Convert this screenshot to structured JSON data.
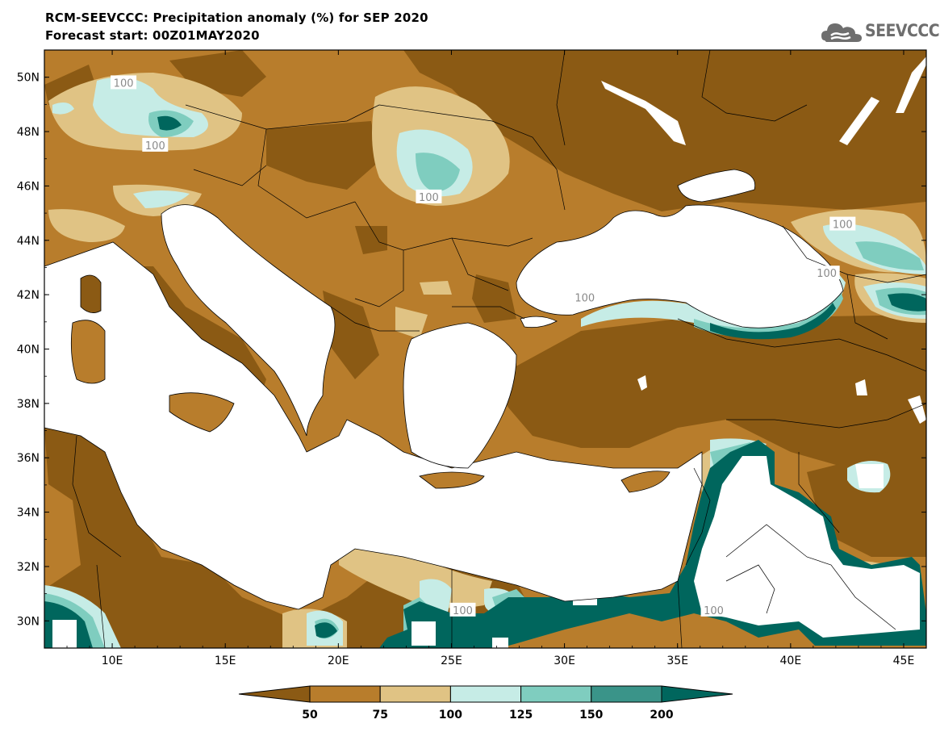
{
  "header": {
    "title_line1": "RCM-SEEVCCC: Precipitation anomaly (%) for SEP 2020",
    "title_line2": "Forecast start: 00Z01MAY2020"
  },
  "logo": {
    "text": "SEEVCCC",
    "icon": "cloud-icon",
    "color": "#6e6e6e"
  },
  "map": {
    "lon_range": [
      7,
      46
    ],
    "lat_range": [
      29,
      51
    ],
    "lat_ticks": [
      {
        "value": 50,
        "label": "50N"
      },
      {
        "value": 48,
        "label": "48N"
      },
      {
        "value": 46,
        "label": "46N"
      },
      {
        "value": 44,
        "label": "44N"
      },
      {
        "value": 42,
        "label": "42N"
      },
      {
        "value": 40,
        "label": "40N"
      },
      {
        "value": 38,
        "label": "38N"
      },
      {
        "value": 36,
        "label": "36N"
      },
      {
        "value": 34,
        "label": "34N"
      },
      {
        "value": 32,
        "label": "32N"
      },
      {
        "value": 30,
        "label": "30N"
      }
    ],
    "lon_ticks": [
      {
        "value": 10,
        "label": "10E"
      },
      {
        "value": 15,
        "label": "15E"
      },
      {
        "value": 20,
        "label": "20E"
      },
      {
        "value": 25,
        "label": "25E"
      },
      {
        "value": 30,
        "label": "30E"
      },
      {
        "value": 35,
        "label": "35E"
      },
      {
        "value": 40,
        "label": "40E"
      },
      {
        "value": 45,
        "label": "45E"
      }
    ],
    "contour_labels": [
      {
        "text": "100",
        "lon": 10.5,
        "lat": 49.8
      },
      {
        "text": "100",
        "lon": 11.9,
        "lat": 47.5
      },
      {
        "text": "100",
        "lon": 24.0,
        "lat": 45.6
      },
      {
        "text": "100",
        "lon": 42.3,
        "lat": 44.6
      },
      {
        "text": "100",
        "lon": 41.6,
        "lat": 42.8
      },
      {
        "text": "100",
        "lon": 30.9,
        "lat": 41.9
      },
      {
        "text": "100",
        "lon": 25.5,
        "lat": 30.4
      },
      {
        "text": "100",
        "lon": 36.6,
        "lat": 30.4
      }
    ]
  },
  "colorbar": {
    "colors": [
      "#8b5a14",
      "#b87d2c",
      "#e0c384",
      "#c6ece6",
      "#7fcdbf",
      "#3a9489",
      "#00665d"
    ],
    "labels": [
      "50",
      "75",
      "100",
      "125",
      "150",
      "200"
    ]
  },
  "palette": {
    "very_dry": "#8b5a14",
    "dry": "#b87d2c",
    "slightly_dry": "#e0c384",
    "slightly_wet": "#c6ece6",
    "wet": "#7fcdbf",
    "very_wet": "#3a9489",
    "extreme_wet": "#00665d",
    "water": "#ffffff"
  }
}
